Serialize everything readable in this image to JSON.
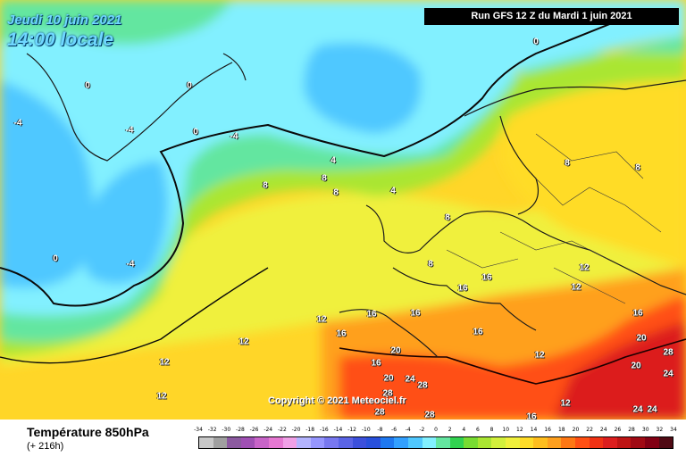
{
  "header": {
    "date": "Jeudi 10 juin 2021",
    "time": "14:00 locale",
    "run": "Run GFS 12 Z du Mardi 1 juin 2021"
  },
  "copyright": "Copyright © 2021 Meteociel.fr",
  "footer": {
    "title": "Température 850hPa",
    "subtitle": "(+ 216h)"
  },
  "legend": {
    "values": [
      "-34",
      "-32",
      "-30",
      "-28",
      "-26",
      "-24",
      "-22",
      "-20",
      "-18",
      "-16",
      "-14",
      "-12",
      "-10",
      "-8",
      "-6",
      "-4",
      "-2",
      "0",
      "2",
      "4",
      "6",
      "8",
      "10",
      "12",
      "14",
      "16",
      "18",
      "20",
      "22",
      "24",
      "26",
      "28",
      "30",
      "32",
      "34"
    ],
    "colors": [
      "#c8c8c8",
      "#a0a0a0",
      "#8c5aa0",
      "#a050b4",
      "#c864c8",
      "#e678d2",
      "#f0a0e6",
      "#b4b4ff",
      "#9696ff",
      "#7878f0",
      "#5a64e6",
      "#3c50dc",
      "#2850dc",
      "#1e78f0",
      "#32a0ff",
      "#50c8ff",
      "#82f0ff",
      "#64e6a0",
      "#32d250",
      "#78dc32",
      "#aae632",
      "#d2f03c",
      "#f0f03c",
      "#ffdc28",
      "#ffbe1e",
      "#ffa01e",
      "#ff7814",
      "#ff5014",
      "#f03214",
      "#dc1e1e",
      "#be1414",
      "#a00a14",
      "#820014",
      "#500a14"
    ]
  },
  "isotherm_labels": [
    "-4",
    "0",
    "4",
    "8",
    "12",
    "16",
    "20",
    "24",
    "28"
  ]
}
